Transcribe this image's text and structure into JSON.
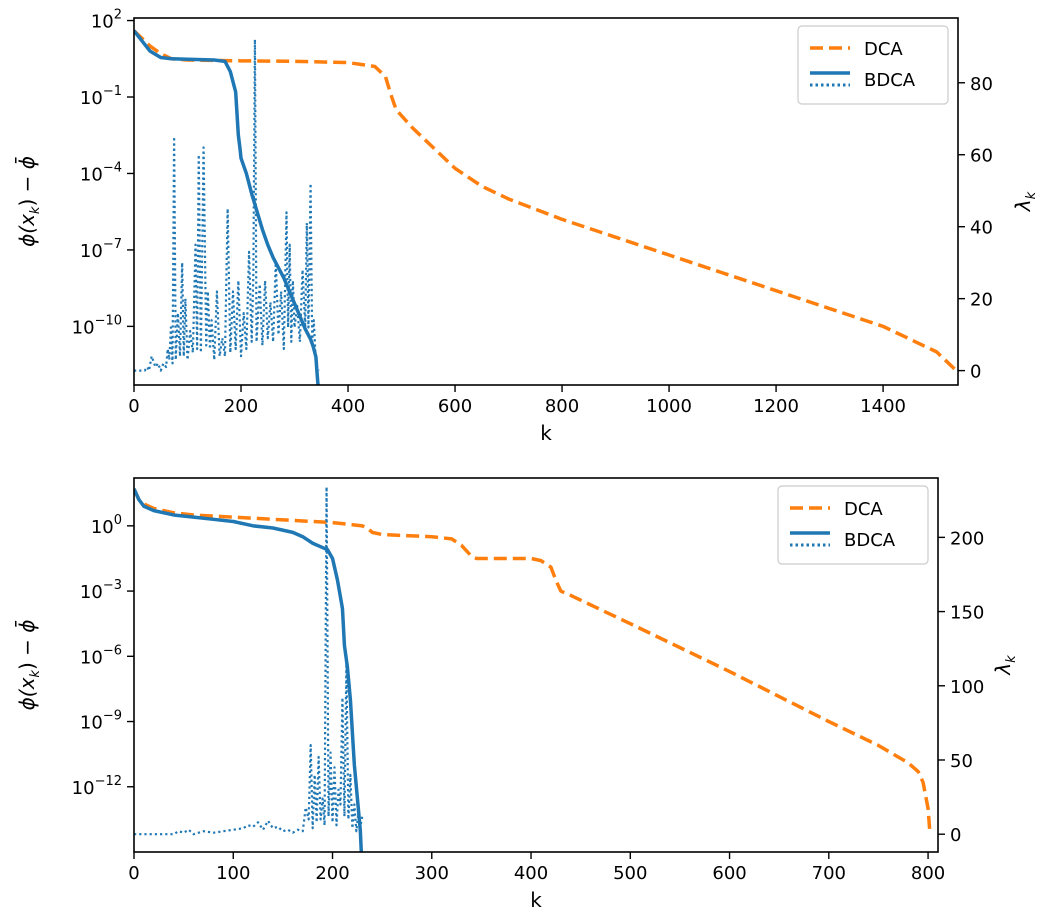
{
  "chart_data": [
    {
      "type": "line",
      "xlabel": "k",
      "ylabel": "ϕ(x_k) − ϕ̄",
      "ylabel_right": "λ_k",
      "xlim": [
        0,
        1540
      ],
      "ylim_log10": [
        -12.3,
        2.1
      ],
      "ylim_right": [
        -4,
        98
      ],
      "y_scale": "log",
      "grid": false,
      "legend_position": "top-right",
      "x_ticks": [
        0,
        200,
        400,
        600,
        800,
        1000,
        1200,
        1400
      ],
      "x_tick_labels": [
        "0",
        "200",
        "400",
        "600",
        "800",
        "1000",
        "1200",
        "1400"
      ],
      "y_ticks_log10": [
        2,
        -1,
        -4,
        -7,
        -10
      ],
      "y_tick_labels": [
        "10^2",
        "10^-1",
        "10^-4",
        "10^-7",
        "10^-10"
      ],
      "y_right_ticks": [
        0,
        20,
        40,
        60,
        80
      ],
      "y_right_tick_labels": [
        "0",
        "20",
        "40",
        "60",
        "80"
      ],
      "series": [
        {
          "name": "DCA",
          "axis": "left",
          "style": "dashed",
          "color": "#ff7f0e",
          "x": [
            0,
            15,
            30,
            50,
            70,
            100,
            200,
            300,
            400,
            450,
            470,
            480,
            490,
            520,
            560,
            600,
            650,
            700,
            800,
            900,
            1000,
            1100,
            1200,
            1300,
            1400,
            1450,
            1500,
            1540
          ],
          "log10_y": [
            1.6,
            1.3,
            1.0,
            0.7,
            0.5,
            0.45,
            0.42,
            0.4,
            0.35,
            0.2,
            -0.2,
            -0.9,
            -1.5,
            -2.2,
            -3.0,
            -3.8,
            -4.5,
            -5.0,
            -5.8,
            -6.5,
            -7.2,
            -7.9,
            -8.6,
            -9.3,
            -10.0,
            -10.5,
            -11.0,
            -11.8
          ]
        },
        {
          "name": "BDCA",
          "axis": "left",
          "style": "solid",
          "color": "#1f77b4",
          "x": [
            0,
            15,
            30,
            50,
            70,
            100,
            150,
            170,
            180,
            190,
            195,
            198,
            200,
            210,
            220,
            230,
            240,
            250,
            260,
            270,
            280,
            290,
            300,
            310,
            320,
            330,
            335,
            340,
            342,
            345
          ],
          "log10_y": [
            1.6,
            1.2,
            0.8,
            0.55,
            0.5,
            0.48,
            0.45,
            0.4,
            0.0,
            -0.8,
            -2.5,
            -3.0,
            -3.4,
            -4.0,
            -4.8,
            -5.5,
            -6.2,
            -6.8,
            -7.3,
            -7.7,
            -8.1,
            -8.6,
            -9.1,
            -9.6,
            -10.1,
            -10.5,
            -10.8,
            -11.2,
            -11.8,
            -12.6
          ]
        },
        {
          "name": "",
          "axis": "right",
          "style": "dotted",
          "color": "#1f77b4",
          "x": [
            0,
            20,
            25,
            28,
            33,
            40,
            45,
            50,
            55,
            60,
            63,
            66,
            69,
            72,
            75,
            78,
            82,
            86,
            90,
            93,
            96,
            100,
            105,
            110,
            115,
            118,
            121,
            125,
            130,
            135,
            138,
            142,
            145,
            150,
            155,
            160,
            165,
            170,
            175,
            180,
            185,
            190,
            195,
            200,
            205,
            210,
            215,
            220,
            223,
            226,
            229,
            235,
            240,
            245,
            250,
            255,
            260,
            265,
            270,
            275,
            280,
            285,
            288,
            291,
            294,
            297,
            300,
            305,
            310,
            315,
            320,
            323,
            326,
            330,
            333,
            336,
            340,
            345
          ],
          "y": [
            0,
            0,
            1,
            0,
            4,
            1,
            2,
            0,
            2,
            1,
            6,
            3,
            12,
            2,
            65,
            3,
            16,
            4,
            30,
            4,
            20,
            3,
            11,
            5,
            35,
            6,
            60,
            5,
            62,
            7,
            22,
            6,
            14,
            3,
            22,
            4,
            9,
            4,
            45,
            5,
            22,
            6,
            25,
            4,
            16,
            6,
            33,
            8,
            26,
            92,
            8,
            24,
            7,
            25,
            9,
            19,
            8,
            30,
            10,
            22,
            6,
            44,
            12,
            35,
            8,
            25,
            12,
            18,
            8,
            28,
            12,
            41,
            12,
            52,
            8,
            14,
            2,
            0
          ]
        }
      ],
      "legend": [
        "DCA",
        "BDCA"
      ]
    },
    {
      "type": "line",
      "xlabel": "k",
      "ylabel": "ϕ(x_k) − ϕ̄",
      "ylabel_right": "λ_k",
      "xlim": [
        0,
        810
      ],
      "ylim_log10": [
        -15,
        2.2
      ],
      "ylim_right": [
        -12,
        240
      ],
      "y_scale": "log",
      "grid": false,
      "legend_position": "top-right",
      "x_ticks": [
        0,
        100,
        200,
        300,
        400,
        500,
        600,
        700,
        800
      ],
      "x_tick_labels": [
        "0",
        "100",
        "200",
        "300",
        "400",
        "500",
        "600",
        "700",
        "800"
      ],
      "y_ticks_log10": [
        0,
        -3,
        -6,
        -9,
        -12
      ],
      "y_tick_labels": [
        "10^0",
        "10^-3",
        "10^-6",
        "10^-9",
        "10^-12"
      ],
      "y_right_ticks": [
        0,
        50,
        100,
        150,
        200
      ],
      "y_right_tick_labels": [
        "0",
        "50",
        "100",
        "150",
        "200"
      ],
      "series": [
        {
          "name": "DCA",
          "axis": "left",
          "style": "dashed",
          "color": "#ff7f0e",
          "x": [
            0,
            5,
            10,
            20,
            40,
            60,
            80,
            100,
            140,
            180,
            200,
            210,
            220,
            230,
            235,
            240,
            250,
            300,
            310,
            320,
            330,
            340,
            345,
            350,
            400,
            410,
            420,
            425,
            430,
            440,
            500,
            600,
            700,
            750,
            780,
            790,
            795,
            800,
            802
          ],
          "log10_y": [
            1.7,
            1.2,
            1.0,
            0.8,
            0.6,
            0.5,
            0.45,
            0.4,
            0.3,
            0.2,
            0.15,
            0.1,
            0.05,
            0.0,
            -0.1,
            -0.3,
            -0.4,
            -0.5,
            -0.55,
            -0.6,
            -0.9,
            -1.4,
            -1.5,
            -1.5,
            -1.5,
            -1.6,
            -1.9,
            -2.5,
            -3.0,
            -3.2,
            -4.5,
            -6.7,
            -9.0,
            -10.1,
            -10.9,
            -11.3,
            -11.8,
            -13.0,
            -14.2
          ]
        },
        {
          "name": "BDCA",
          "axis": "left",
          "style": "solid",
          "color": "#1f77b4",
          "x": [
            0,
            5,
            10,
            20,
            40,
            60,
            80,
            100,
            120,
            140,
            160,
            170,
            180,
            190,
            195,
            200,
            205,
            210,
            212,
            215,
            218,
            220,
            222,
            225,
            228,
            229
          ],
          "log10_y": [
            1.7,
            1.2,
            0.9,
            0.7,
            0.5,
            0.4,
            0.3,
            0.2,
            0.0,
            -0.1,
            -0.3,
            -0.5,
            -0.8,
            -1.0,
            -1.1,
            -1.5,
            -2.5,
            -3.8,
            -5.5,
            -6.5,
            -8.0,
            -9.5,
            -11.0,
            -12.5,
            -14.0,
            -15.0
          ]
        },
        {
          "name": "",
          "axis": "right",
          "style": "dotted",
          "color": "#1f77b4",
          "x": [
            0,
            40,
            45,
            50,
            55,
            60,
            70,
            80,
            90,
            100,
            110,
            115,
            120,
            125,
            130,
            135,
            140,
            145,
            150,
            155,
            160,
            165,
            170,
            173,
            176,
            178,
            180,
            182,
            184,
            186,
            188,
            190,
            192,
            194,
            196,
            198,
            200,
            202,
            204,
            206,
            208,
            210,
            212,
            214,
            216,
            218,
            220,
            222,
            224,
            226,
            228,
            230
          ],
          "y": [
            0,
            0,
            2,
            1,
            3,
            0,
            2,
            1,
            2,
            3,
            4,
            6,
            5,
            8,
            3,
            9,
            4,
            5,
            2,
            3,
            1,
            3,
            2,
            18,
            10,
            60,
            4,
            40,
            8,
            52,
            10,
            24,
            6,
            234,
            12,
            55,
            8,
            45,
            6,
            30,
            20,
            92,
            12,
            115,
            10,
            40,
            4,
            20,
            2,
            14,
            5,
            12
          ]
        }
      ],
      "legend": [
        "DCA",
        "BDCA"
      ]
    }
  ]
}
